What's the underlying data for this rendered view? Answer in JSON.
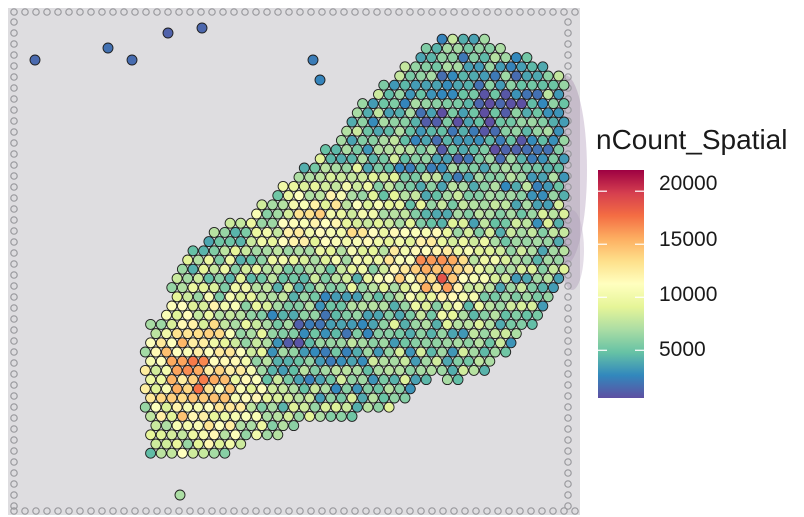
{
  "chart_data": {
    "type": "scatter",
    "subtype": "spatial-spot-plot",
    "background": "tissue-image",
    "color_scale": "Spectral (reversed)",
    "legend": {
      "title": "nCount_Spatial",
      "placement": "right",
      "range": [
        500,
        22000
      ],
      "breaks": [
        5000,
        10000,
        15000,
        20000
      ],
      "tick_labels": [
        "20000",
        "15000",
        "10000",
        "5000"
      ],
      "colors": [
        "#5E4FA2",
        "#3288BD",
        "#66C2A5",
        "#ABDDA4",
        "#E6F598",
        "#FFFFBF",
        "#FEE08B",
        "#FDAE61",
        "#F46D43",
        "#D53E4F",
        "#9E0142"
      ]
    }
  }
}
